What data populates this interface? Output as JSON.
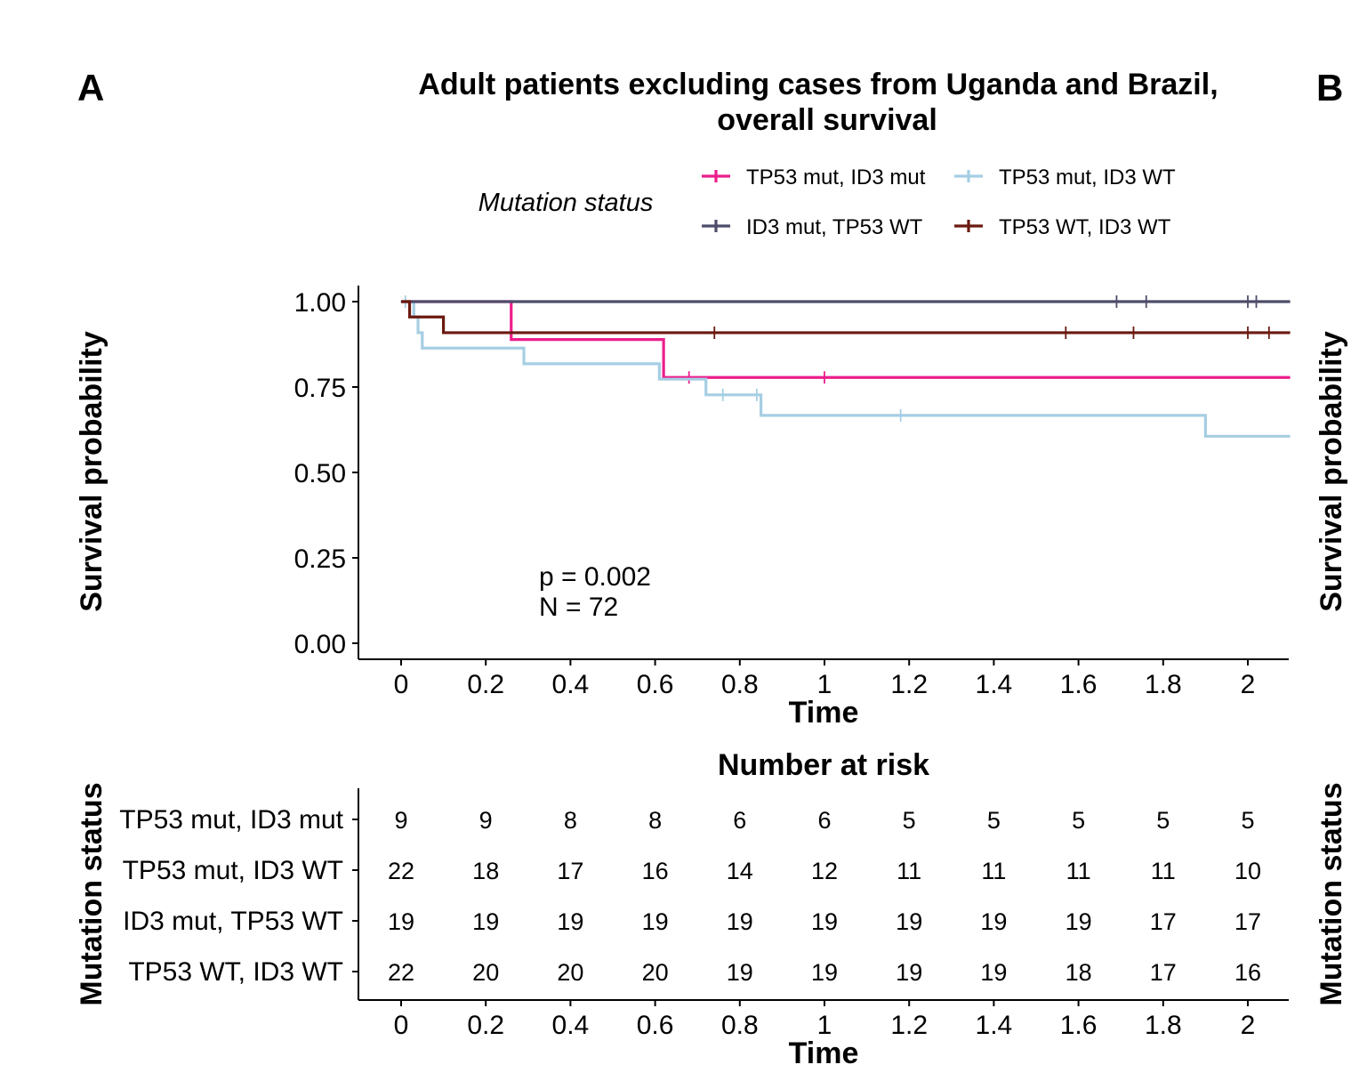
{
  "panel_labels": {
    "left": "A",
    "right": "B"
  },
  "chart_data": [
    {
      "type": "line",
      "subtype": "kaplan-meier",
      "title_line1": "Adult patients excluding cases from Uganda and Brazil,",
      "title_line2": "overall survival",
      "xlabel": "Time",
      "ylabel": "Survival probability",
      "xlim": [
        -0.1,
        2.1
      ],
      "ylim": [
        0,
        1
      ],
      "x_ticks": [
        0,
        0.2,
        0.4,
        0.6,
        0.8,
        1,
        1.2,
        1.4,
        1.6,
        1.8,
        2
      ],
      "x_tick_labels": [
        "0",
        "0.2",
        "0.4",
        "0.6",
        "0.8",
        "1",
        "1.2",
        "1.4",
        "1.6",
        "1.8",
        "2"
      ],
      "y_ticks": [
        0,
        0.25,
        0.5,
        0.75,
        1
      ],
      "y_tick_labels": [
        "0.00",
        "0.25",
        "0.50",
        "0.75",
        "1.00"
      ],
      "legend": {
        "title": "Mutation status",
        "position": "top",
        "entries": [
          "TP53 mut, ID3 mut",
          "TP53 mut, ID3 WT",
          "ID3 mut, TP53 WT",
          "TP53 WT, ID3 WT"
        ]
      },
      "annotation": {
        "p_value": "p = 0.002",
        "n": "N = 72"
      },
      "series": [
        {
          "name": "TP53 mut, ID3 mut",
          "color": "#ec1e8c",
          "steps": [
            [
              0,
              1.0
            ],
            [
              0.26,
              0.889
            ],
            [
              0.62,
              0.778
            ],
            [
              2.1,
              0.778
            ]
          ],
          "censor": [
            0.68,
            1.0
          ]
        },
        {
          "name": "TP53 mut, ID3 WT",
          "color": "#a6cee3",
          "steps": [
            [
              0,
              1.0
            ],
            [
              0.03,
              0.955
            ],
            [
              0.04,
              0.909
            ],
            [
              0.05,
              0.864
            ],
            [
              0.29,
              0.818
            ],
            [
              0.61,
              0.773
            ],
            [
              0.72,
              0.727
            ],
            [
              0.85,
              0.667
            ],
            [
              1.9,
              0.606
            ],
            [
              2.1,
              0.606
            ]
          ],
          "censor": [
            0.01,
            0.76,
            0.84,
            1.18
          ]
        },
        {
          "name": "ID3 mut, TP53 WT",
          "color": "#4d4d6b",
          "steps": [
            [
              0,
              1.0
            ],
            [
              2.1,
              1.0
            ]
          ],
          "censor": [
            1.69,
            1.76,
            2.0,
            2.02
          ]
        },
        {
          "name": "TP53 WT, ID3 WT",
          "color": "#6b1a10",
          "steps": [
            [
              0,
              1.0
            ],
            [
              0.02,
              0.955
            ],
            [
              0.1,
              0.909
            ],
            [
              2.1,
              0.909
            ]
          ],
          "censor": [
            0.74,
            1.57,
            1.73,
            2.0,
            2.05
          ]
        }
      ]
    },
    {
      "type": "table",
      "title": "Number at risk",
      "xlabel": "Time",
      "ylabel": "Mutation status",
      "x_ticks": [
        0,
        0.2,
        0.4,
        0.6,
        0.8,
        1,
        1.2,
        1.4,
        1.6,
        1.8,
        2
      ],
      "x_tick_labels": [
        "0",
        "0.2",
        "0.4",
        "0.6",
        "0.8",
        "1",
        "1.2",
        "1.4",
        "1.6",
        "1.8",
        "2"
      ],
      "rows": [
        {
          "name": "TP53 mut, ID3 mut",
          "values": [
            9,
            9,
            8,
            8,
            6,
            6,
            5,
            5,
            5,
            5,
            5
          ]
        },
        {
          "name": "TP53 mut, ID3 WT",
          "values": [
            22,
            18,
            17,
            16,
            14,
            12,
            11,
            11,
            11,
            11,
            10
          ]
        },
        {
          "name": "ID3 mut, TP53 WT",
          "values": [
            19,
            19,
            19,
            19,
            19,
            19,
            19,
            19,
            19,
            17,
            17
          ]
        },
        {
          "name": "TP53 WT, ID3 WT",
          "values": [
            22,
            20,
            20,
            20,
            19,
            19,
            19,
            19,
            18,
            17,
            16
          ]
        }
      ]
    }
  ],
  "right_panel": {
    "ylabel_top": "Survival probability",
    "ylabel_bottom": "Mutation status"
  }
}
